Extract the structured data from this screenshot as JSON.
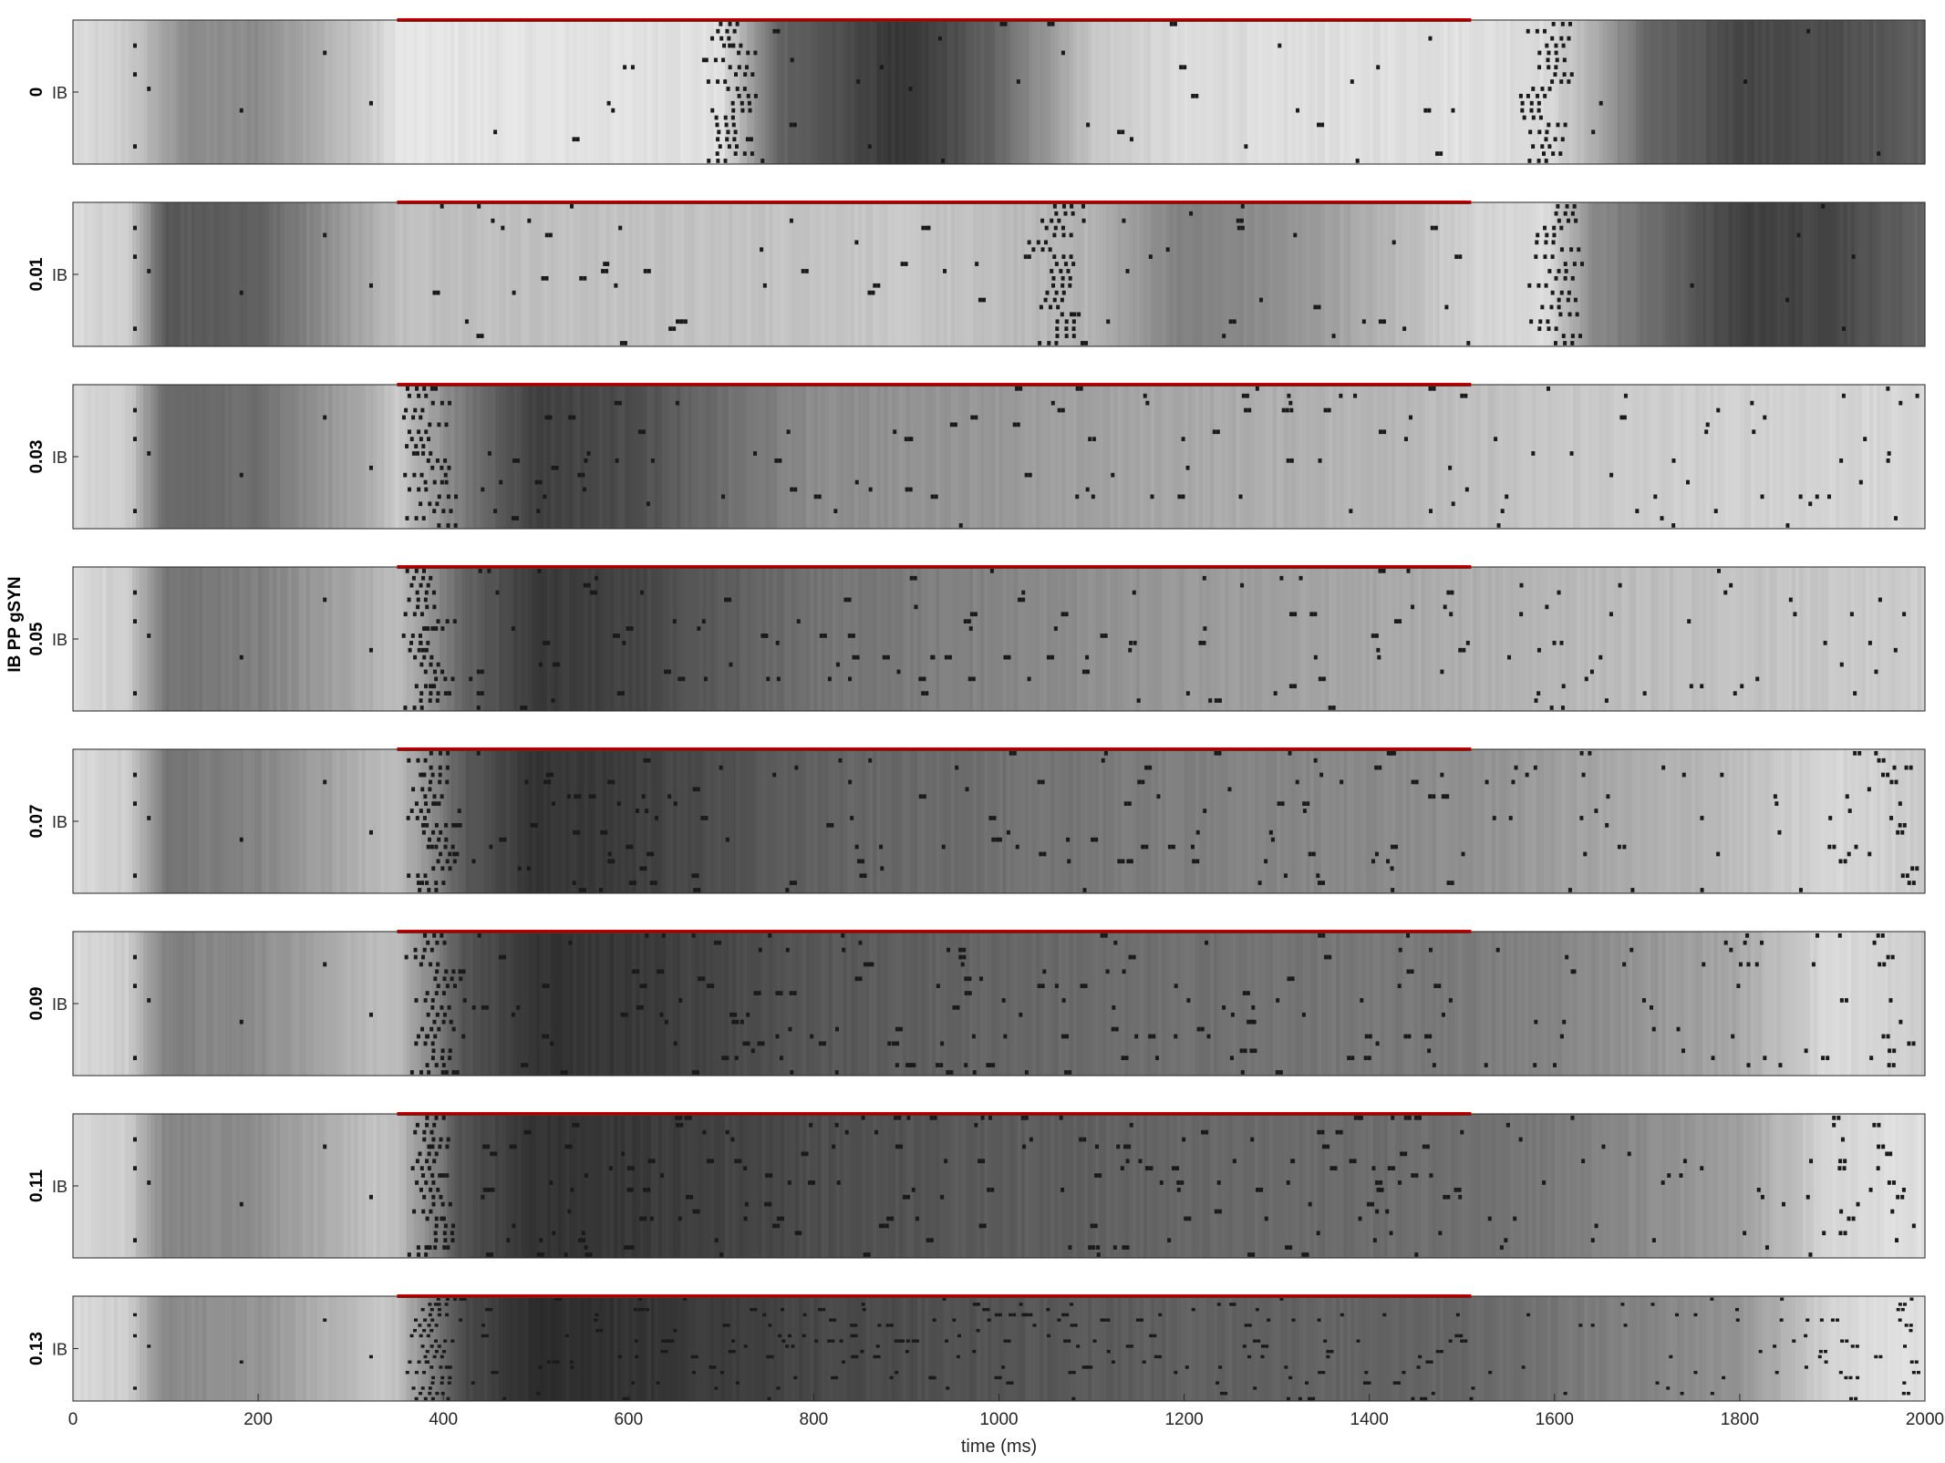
{
  "chart_data": {
    "type": "raster",
    "ylabel": "IB PP gSYN",
    "xlabel": "time (ms)",
    "xlim": [
      0,
      2000
    ],
    "xticks": [
      "0",
      "200",
      "400",
      "600",
      "800",
      "1000",
      "1200",
      "1400",
      "1600",
      "1800",
      "2000"
    ],
    "row_label": "IB",
    "stimulus": {
      "start": 350,
      "end": 1510,
      "color": "#cc0000"
    },
    "panels": [
      {
        "gsyn": "0",
        "burst_times": [
          710,
          1590
        ],
        "shading": [
          [
            0,
            0.86
          ],
          [
            60,
            0.8
          ],
          [
            120,
            0.55
          ],
          [
            200,
            0.55
          ],
          [
            330,
            0.82
          ],
          [
            350,
            0.9
          ],
          [
            700,
            0.88
          ],
          [
            760,
            0.4
          ],
          [
            900,
            0.2
          ],
          [
            1000,
            0.4
          ],
          [
            1100,
            0.78
          ],
          [
            1200,
            0.86
          ],
          [
            1500,
            0.88
          ],
          [
            1590,
            0.86
          ],
          [
            1640,
            0.7
          ],
          [
            1700,
            0.4
          ],
          [
            1800,
            0.28
          ],
          [
            1900,
            0.3
          ],
          [
            2000,
            0.38
          ]
        ]
      },
      {
        "gsyn": "0.01",
        "burst_times": [
          1060,
          1600
        ],
        "shading": [
          [
            0,
            0.86
          ],
          [
            60,
            0.8
          ],
          [
            100,
            0.35
          ],
          [
            200,
            0.38
          ],
          [
            330,
            0.7
          ],
          [
            350,
            0.75
          ],
          [
            700,
            0.76
          ],
          [
            900,
            0.78
          ],
          [
            1000,
            0.74
          ],
          [
            1100,
            0.7
          ],
          [
            1200,
            0.5
          ],
          [
            1300,
            0.56
          ],
          [
            1400,
            0.68
          ],
          [
            1500,
            0.82
          ],
          [
            1590,
            0.86
          ],
          [
            1640,
            0.55
          ],
          [
            1800,
            0.25
          ],
          [
            1900,
            0.28
          ],
          [
            2000,
            0.4
          ]
        ]
      },
      {
        "gsyn": "0.03",
        "burst_times": [
          385
        ],
        "shading": [
          [
            0,
            0.86
          ],
          [
            60,
            0.8
          ],
          [
            100,
            0.4
          ],
          [
            200,
            0.44
          ],
          [
            330,
            0.7
          ],
          [
            350,
            0.8
          ],
          [
            420,
            0.48
          ],
          [
            500,
            0.25
          ],
          [
            600,
            0.3
          ],
          [
            800,
            0.55
          ],
          [
            1000,
            0.6
          ],
          [
            1200,
            0.66
          ],
          [
            1500,
            0.74
          ],
          [
            1600,
            0.78
          ],
          [
            1800,
            0.82
          ],
          [
            2000,
            0.84
          ]
        ]
      },
      {
        "gsyn": "0.05",
        "burst_times": [
          385
        ],
        "shading": [
          [
            0,
            0.86
          ],
          [
            60,
            0.8
          ],
          [
            100,
            0.45
          ],
          [
            200,
            0.5
          ],
          [
            330,
            0.7
          ],
          [
            350,
            0.75
          ],
          [
            420,
            0.4
          ],
          [
            500,
            0.22
          ],
          [
            600,
            0.26
          ],
          [
            800,
            0.45
          ],
          [
            1000,
            0.52
          ],
          [
            1200,
            0.6
          ],
          [
            1500,
            0.68
          ],
          [
            1600,
            0.72
          ],
          [
            1800,
            0.76
          ],
          [
            2000,
            0.8
          ]
        ]
      },
      {
        "gsyn": "0.07",
        "burst_times": [
          385
        ],
        "shading": [
          [
            0,
            0.86
          ],
          [
            60,
            0.8
          ],
          [
            100,
            0.46
          ],
          [
            200,
            0.52
          ],
          [
            330,
            0.72
          ],
          [
            350,
            0.75
          ],
          [
            420,
            0.36
          ],
          [
            500,
            0.2
          ],
          [
            600,
            0.24
          ],
          [
            800,
            0.38
          ],
          [
            1000,
            0.44
          ],
          [
            1200,
            0.5
          ],
          [
            1500,
            0.56
          ],
          [
            1600,
            0.62
          ],
          [
            1800,
            0.74
          ],
          [
            1900,
            0.84
          ],
          [
            2000,
            0.8
          ]
        ]
      },
      {
        "gsyn": "0.09",
        "burst_times": [
          385
        ],
        "shading": [
          [
            0,
            0.86
          ],
          [
            60,
            0.8
          ],
          [
            100,
            0.5
          ],
          [
            200,
            0.55
          ],
          [
            330,
            0.74
          ],
          [
            350,
            0.75
          ],
          [
            420,
            0.34
          ],
          [
            500,
            0.2
          ],
          [
            600,
            0.22
          ],
          [
            800,
            0.34
          ],
          [
            1000,
            0.4
          ],
          [
            1200,
            0.44
          ],
          [
            1500,
            0.48
          ],
          [
            1600,
            0.52
          ],
          [
            1800,
            0.66
          ],
          [
            1900,
            0.86
          ],
          [
            2000,
            0.8
          ]
        ]
      },
      {
        "gsyn": "0.11",
        "burst_times": [
          385
        ],
        "shading": [
          [
            0,
            0.86
          ],
          [
            60,
            0.8
          ],
          [
            100,
            0.52
          ],
          [
            200,
            0.56
          ],
          [
            330,
            0.76
          ],
          [
            350,
            0.75
          ],
          [
            420,
            0.32
          ],
          [
            500,
            0.2
          ],
          [
            600,
            0.22
          ],
          [
            800,
            0.3
          ],
          [
            1000,
            0.36
          ],
          [
            1200,
            0.4
          ],
          [
            1500,
            0.44
          ],
          [
            1600,
            0.48
          ],
          [
            1800,
            0.62
          ],
          [
            1900,
            0.84
          ],
          [
            2000,
            0.88
          ]
        ]
      },
      {
        "gsyn": "0.13",
        "burst_times": [
          385
        ],
        "shading": [
          [
            0,
            0.86
          ],
          [
            60,
            0.8
          ],
          [
            100,
            0.54
          ],
          [
            200,
            0.58
          ],
          [
            330,
            0.78
          ],
          [
            350,
            0.75
          ],
          [
            420,
            0.3
          ],
          [
            500,
            0.18
          ],
          [
            600,
            0.2
          ],
          [
            800,
            0.28
          ],
          [
            1000,
            0.33
          ],
          [
            1200,
            0.38
          ],
          [
            1500,
            0.4
          ],
          [
            1600,
            0.46
          ],
          [
            1800,
            0.58
          ],
          [
            1900,
            0.84
          ],
          [
            2000,
            0.88
          ]
        ]
      }
    ]
  }
}
